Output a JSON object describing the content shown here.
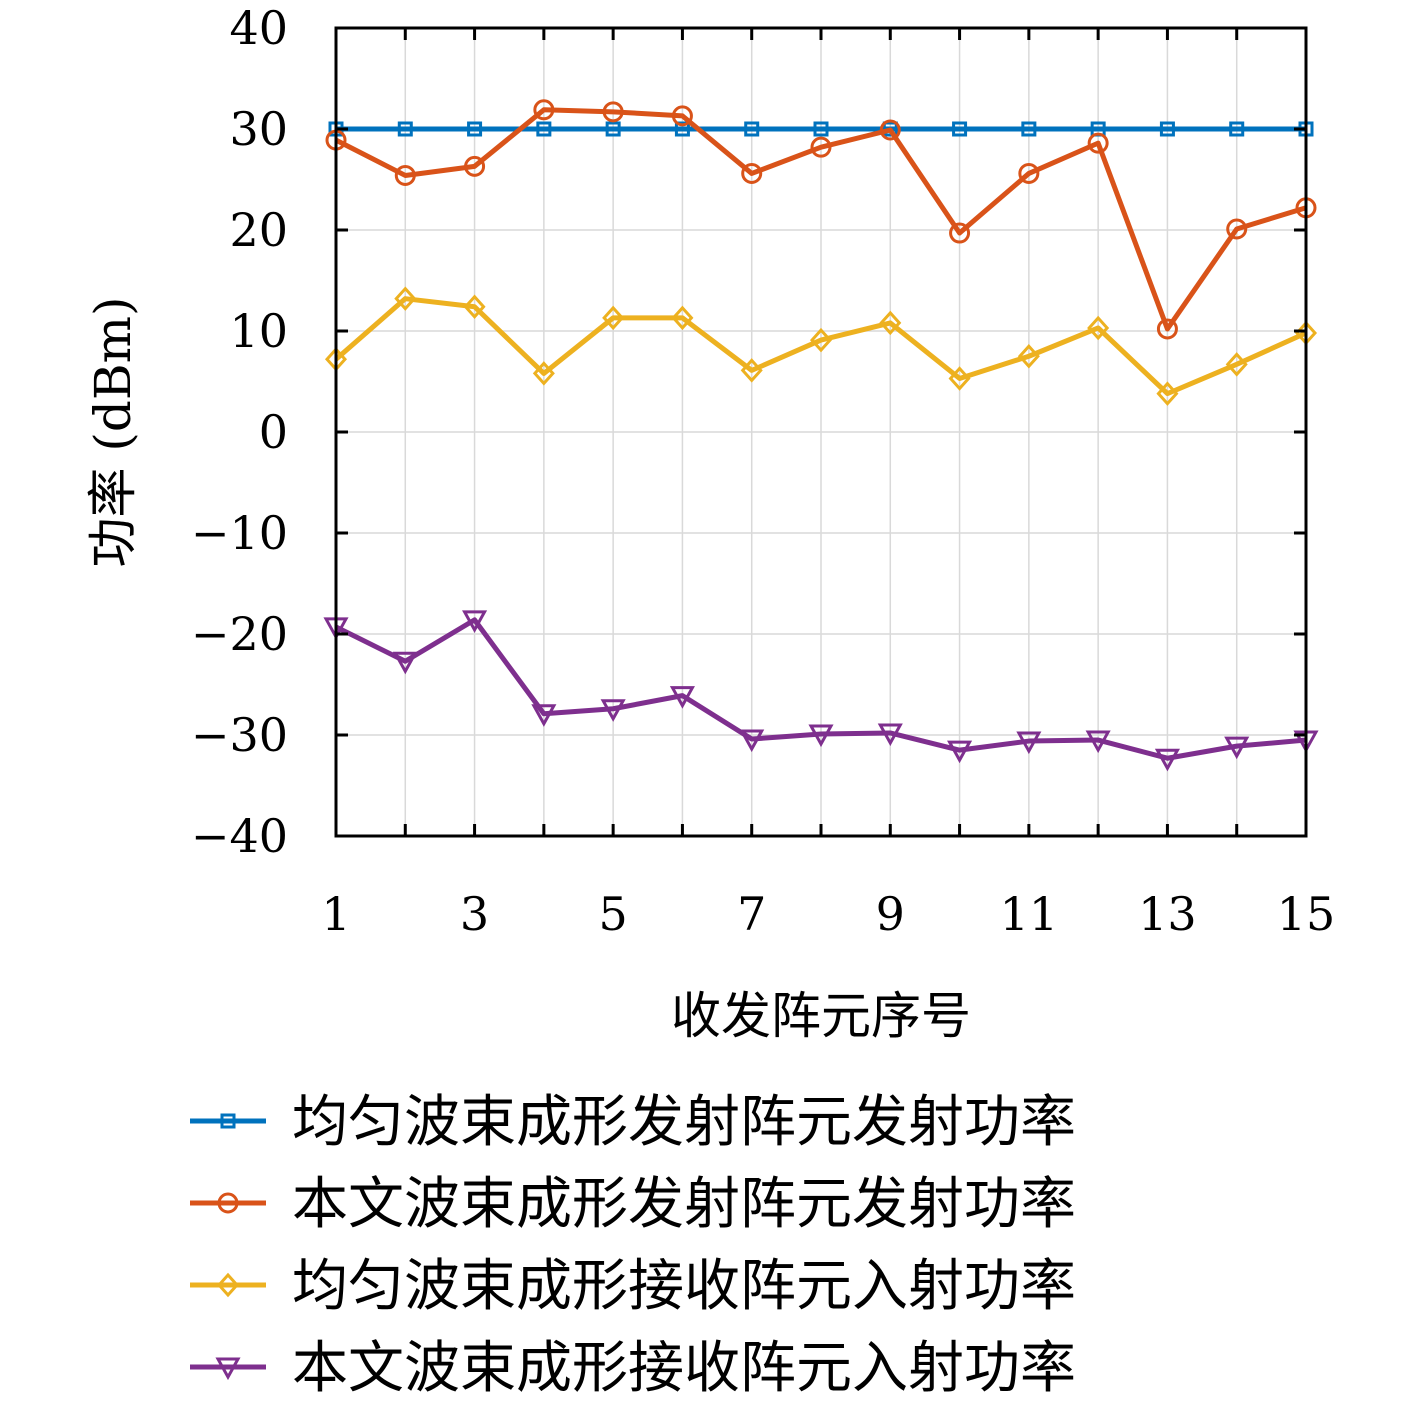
{
  "chart_data": {
    "type": "line",
    "title": "",
    "xlabel": "收发阵元序号",
    "ylabel": "功率 (dBm)",
    "xlim": [
      1,
      15
    ],
    "ylim": [
      -40,
      40
    ],
    "xticks": [
      1,
      3,
      5,
      7,
      9,
      11,
      13,
      15
    ],
    "yticks": [
      -40,
      -30,
      -20,
      -10,
      0,
      10,
      20,
      30,
      40
    ],
    "ytick_labels": [
      "−40",
      "−30",
      "−20",
      "−10",
      "0",
      "10",
      "20",
      "30",
      "40"
    ],
    "grid": true,
    "legend_position": "bottom",
    "x": [
      1,
      2,
      3,
      4,
      5,
      6,
      7,
      8,
      9,
      10,
      11,
      12,
      13,
      14,
      15
    ],
    "series": [
      {
        "name": "均匀波束成形发射阵元发射功率",
        "color": "#0072BD",
        "marker": "square",
        "values": [
          30,
          30,
          30,
          30,
          30,
          30,
          30,
          30,
          30,
          30,
          30,
          30,
          30,
          30,
          30
        ]
      },
      {
        "name": "本文波束成形发射阵元发射功率",
        "color": "#D95319",
        "marker": "circle",
        "values": [
          28.9,
          25.4,
          26.3,
          31.9,
          31.7,
          31.3,
          25.6,
          28.2,
          29.9,
          19.7,
          25.6,
          28.6,
          10.2,
          20.1,
          22.2
        ]
      },
      {
        "name": "均匀波束成形接收阵元入射功率",
        "color": "#EDB120",
        "marker": "diamond",
        "values": [
          7.2,
          13.2,
          12.4,
          5.8,
          11.3,
          11.3,
          6.1,
          9.1,
          10.8,
          5.3,
          7.5,
          10.3,
          3.8,
          6.7,
          9.8
        ]
      },
      {
        "name": "本文波束成形接收阵元入射功率",
        "color": "#7E2F8E",
        "marker": "triangle-down",
        "values": [
          -19.3,
          -22.7,
          -18.6,
          -27.9,
          -27.4,
          -26.1,
          -30.4,
          -29.9,
          -29.8,
          -31.5,
          -30.6,
          -30.5,
          -32.3,
          -31.1,
          -30.5
        ]
      }
    ]
  }
}
